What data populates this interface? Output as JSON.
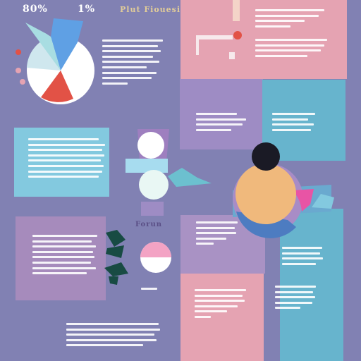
{
  "headings": {
    "left_percent": "80%",
    "mid_percent": "1%",
    "right_title": "Plut Fiouesi",
    "center_label": "Forun"
  },
  "colors": {
    "background": "#8181b3",
    "pink_panel": "#e5a3b2",
    "mauve_panel": "#a68bbc",
    "teal_panel": "#67b4cd",
    "cyan_panel": "#83c9df",
    "orange_accent": "#f0b97c",
    "red_accent": "#e25246",
    "blue_accent": "#5fa0e4",
    "dark": "#1a1a25",
    "teal_dark": "#184b43",
    "text_light": "#ffffff",
    "text_dark": "#3f3568"
  },
  "icons": {
    "pie": "pie-chart-icon",
    "hourglass": "hourglass-icon",
    "leaf": "leaf-icon",
    "pin": "pin-icon",
    "donut": "donut-icon"
  }
}
